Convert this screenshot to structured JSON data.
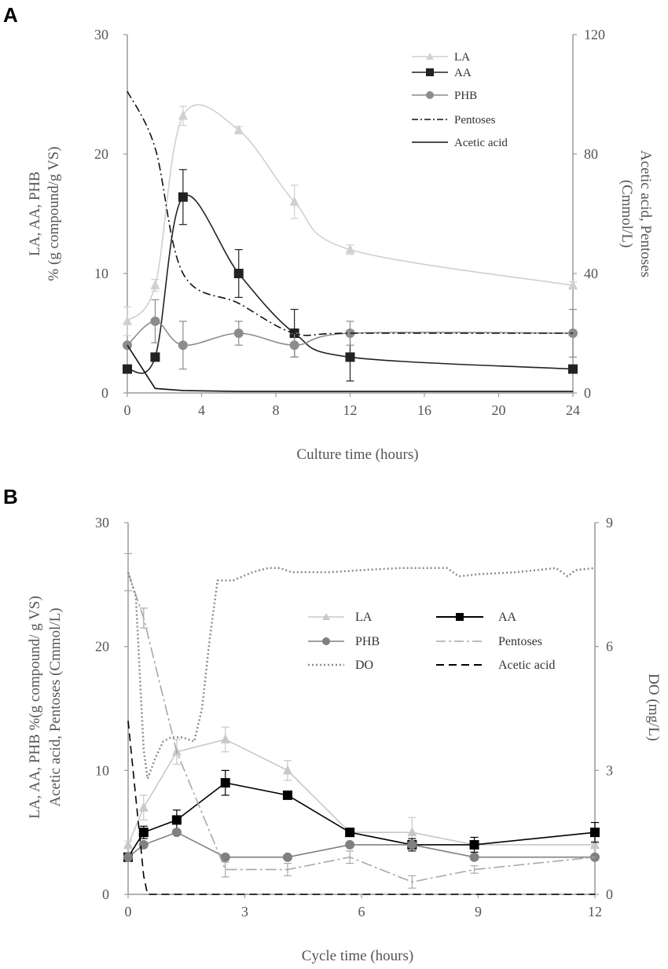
{
  "chart_data": [
    {
      "panel_label": "A",
      "type": "line",
      "xlabel": "Culture time (hours)",
      "ylabel_left": [
        "LA, AA, PHB",
        "% (g compound/g VS)"
      ],
      "ylabel_right": [
        "Acetic acid, Pentoses",
        "(Cmmol/L)"
      ],
      "xlim": [
        0,
        24
      ],
      "ylim_left": [
        0,
        30
      ],
      "ylim_right": [
        0,
        120
      ],
      "x_ticks": [
        "0",
        "4",
        "8",
        "12",
        "16",
        "20",
        "24"
      ],
      "y_left_ticks": [
        "0",
        "10",
        "20",
        "30"
      ],
      "y_right_ticks": [
        "0",
        "40",
        "80",
        "120"
      ],
      "grid": false,
      "legend_position": "top-right",
      "series": [
        {
          "name": "LA",
          "axis": "left",
          "color": "#d0d0d0",
          "marker": "triangle",
          "style": "solid",
          "x": [
            0,
            1.5,
            3,
            6,
            9,
            12,
            24
          ],
          "y": [
            6,
            9,
            23.2,
            22,
            16,
            12,
            9
          ],
          "err": [
            1.2,
            0.5,
            0.8,
            0.3,
            1.4,
            0.4,
            0.3
          ]
        },
        {
          "name": "AA",
          "axis": "left",
          "color": "#222222",
          "marker": "square",
          "style": "solid",
          "x": [
            0,
            1.5,
            3,
            6,
            9,
            12,
            24
          ],
          "y": [
            2,
            3,
            16.4,
            10,
            5,
            3,
            2
          ],
          "err": [
            0,
            0,
            2.3,
            2,
            2,
            2,
            0
          ]
        },
        {
          "name": "PHB",
          "axis": "left",
          "color": "#8c8c8c",
          "marker": "circle",
          "style": "solid",
          "x": [
            0,
            1.5,
            3,
            6,
            9,
            12,
            24
          ],
          "y": [
            4,
            6,
            4,
            5,
            4,
            5,
            5
          ],
          "err": [
            0,
            1.8,
            2,
            1,
            1,
            1,
            2
          ]
        },
        {
          "name": "Pentoses",
          "axis": "right",
          "color": "#111111",
          "marker": "none",
          "style": "dashdot",
          "x": [
            0,
            1.5,
            3,
            6,
            9,
            12,
            24
          ],
          "y": [
            101,
            82,
            40,
            30,
            20,
            20,
            20
          ],
          "err": []
        },
        {
          "name": "Acetic acid",
          "axis": "right",
          "color": "#111111",
          "marker": "none",
          "style": "solid",
          "x": [
            0,
            1.5,
            3,
            6,
            9,
            12,
            24
          ],
          "y": [
            16,
            1.5,
            0.8,
            0.5,
            0.5,
            0.5,
            0.5
          ],
          "err": []
        }
      ]
    },
    {
      "panel_label": "B",
      "type": "line",
      "xlabel": "Cycle time  (hours)",
      "ylabel_left": [
        "LA, AA, PHB %(g compound/  g VS)",
        "Acetic acid, Pentoses (Cmmol/L)"
      ],
      "ylabel_right": [
        "DO (mg/L)"
      ],
      "xlim": [
        0,
        12
      ],
      "ylim_left": [
        0,
        30
      ],
      "ylim_right": [
        0,
        9
      ],
      "x_ticks": [
        "0",
        "3",
        "6",
        "9",
        "12"
      ],
      "y_left_ticks": [
        "0",
        "10",
        "20",
        "30"
      ],
      "y_right_ticks": [
        "0",
        "3",
        "6",
        "9"
      ],
      "grid": false,
      "legend_position": "center-right",
      "series": [
        {
          "name": "LA",
          "axis": "left",
          "color": "#c8c8c8",
          "marker": "triangle",
          "style": "solid",
          "x": [
            0,
            0.4,
            1.25,
            2.5,
            4.1,
            5.7,
            7.3,
            8.9,
            12
          ],
          "y": [
            4,
            7,
            11.5,
            12.5,
            10,
            5,
            5,
            4,
            4
          ],
          "err": [
            0.3,
            1,
            1,
            1,
            0.8,
            0.3,
            1.2,
            0.3,
            0.3
          ]
        },
        {
          "name": "AA",
          "axis": "left",
          "color": "#000000",
          "marker": "square",
          "style": "solid",
          "x": [
            0,
            0.4,
            1.25,
            2.5,
            4.1,
            5.7,
            7.3,
            8.9,
            12
          ],
          "y": [
            3,
            5,
            6,
            9,
            8,
            5,
            4,
            4,
            5
          ],
          "err": [
            0.3,
            0.5,
            0.8,
            1,
            0.3,
            0.3,
            0.5,
            0.6,
            0.8
          ]
        },
        {
          "name": "PHB",
          "axis": "left",
          "color": "#808080",
          "marker": "circle",
          "style": "solid",
          "x": [
            0,
            0.4,
            1.25,
            2.5,
            4.1,
            5.7,
            7.3,
            8.9,
            12
          ],
          "y": [
            3,
            4,
            5,
            3,
            3,
            4,
            4,
            3,
            3
          ],
          "err": []
        },
        {
          "name": "Pentoses",
          "axis": "left",
          "color": "#a8a8a8",
          "marker": "none",
          "style": "longdashdot",
          "x": [
            0,
            0.4,
            1.25,
            2.5,
            4.1,
            5.7,
            7.3,
            8.9,
            12
          ],
          "y": [
            26,
            22.3,
            11.5,
            2,
            2,
            3,
            1,
            2,
            3
          ],
          "err": [
            1.5,
            0.8,
            0,
            0.6,
            0.5,
            0.5,
            0.5,
            0.3,
            0
          ]
        },
        {
          "name": "DO",
          "axis": "right",
          "color": "#8c8c8c",
          "marker": "none",
          "style": "dotted",
          "x": [
            0,
            0.2,
            0.4,
            0.5,
            0.7,
            0.9,
            1.1,
            1.4,
            1.7,
            1.9,
            2.1,
            2.3,
            2.7,
            3.2,
            3.6,
            3.9,
            4.2,
            4.6,
            5.2,
            6,
            7,
            8.2,
            8.5,
            9,
            10,
            11,
            11.3,
            11.5,
            12
          ],
          "y": [
            7.8,
            7.2,
            3.5,
            2.8,
            3.3,
            3.7,
            3.8,
            3.8,
            3.7,
            4.5,
            6.2,
            7.6,
            7.6,
            7.8,
            7.9,
            7.9,
            7.8,
            7.8,
            7.8,
            7.85,
            7.9,
            7.9,
            7.7,
            7.75,
            7.8,
            7.9,
            7.7,
            7.85,
            7.9
          ],
          "err": []
        },
        {
          "name": "Acetic acid",
          "axis": "left",
          "color": "#000000",
          "marker": "none",
          "style": "dashed",
          "x": [
            0,
            0.4,
            0.5,
            12
          ],
          "y": [
            14,
            1.5,
            0,
            0
          ],
          "err": []
        }
      ]
    }
  ]
}
